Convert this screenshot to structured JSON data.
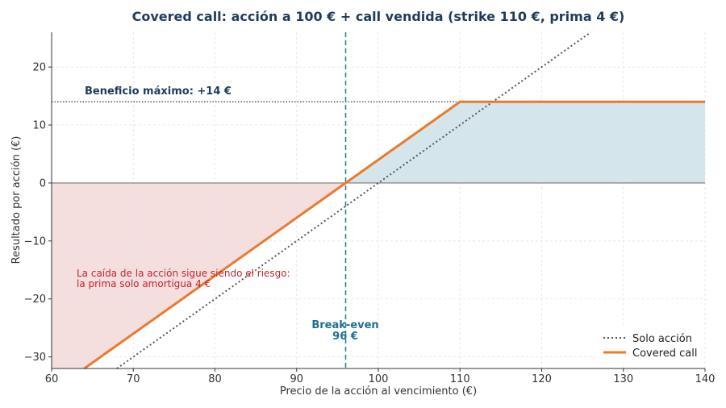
{
  "chart_data": {
    "type": "line",
    "title": "Covered call: acción a 100 € + call vendida (strike 110 €, prima 4 €)",
    "xlabel": "Precio de la acción al vencimiento (€)",
    "ylabel": "Resultado por acción (€)",
    "xlim": [
      60,
      140
    ],
    "ylim": [
      -32,
      26
    ],
    "xticks": [
      60,
      70,
      80,
      90,
      100,
      110,
      120,
      130,
      140
    ],
    "yticks": [
      -30,
      -20,
      -10,
      0,
      10,
      20
    ],
    "grid": true,
    "legend_position": "bottom-right",
    "series": [
      {
        "name": "Solo acción",
        "style": "dotted",
        "color": "#555555",
        "x": [
          60,
          126
        ],
        "y": [
          -40,
          26
        ]
      },
      {
        "name": "Covered call",
        "style": "solid",
        "color": "#e87b2e",
        "x": [
          60,
          110,
          140
        ],
        "y": [
          -36,
          14,
          14
        ]
      }
    ],
    "reference_lines": {
      "breakeven_x": 96,
      "max_profit_y": 14,
      "zero_y": 0
    },
    "annotations": {
      "max_profit": "Beneficio máximo: +14 €",
      "breakeven_line1": "Break-even",
      "breakeven_line2": "96 €",
      "risk_line1": "La caída de la acción sigue siendo el riesgo:",
      "risk_line2": "la prima solo amortigua 4 €"
    },
    "colors": {
      "loss_fill": "#f4dede",
      "profit_fill": "#d5e5ec",
      "breakeven": "#1f7f8f",
      "max_profit_line": "#1f3b5c",
      "risk_text": "#c0262d",
      "breakeven_text": "#1f6f8f",
      "max_profit_text": "#1f3b5c"
    }
  }
}
